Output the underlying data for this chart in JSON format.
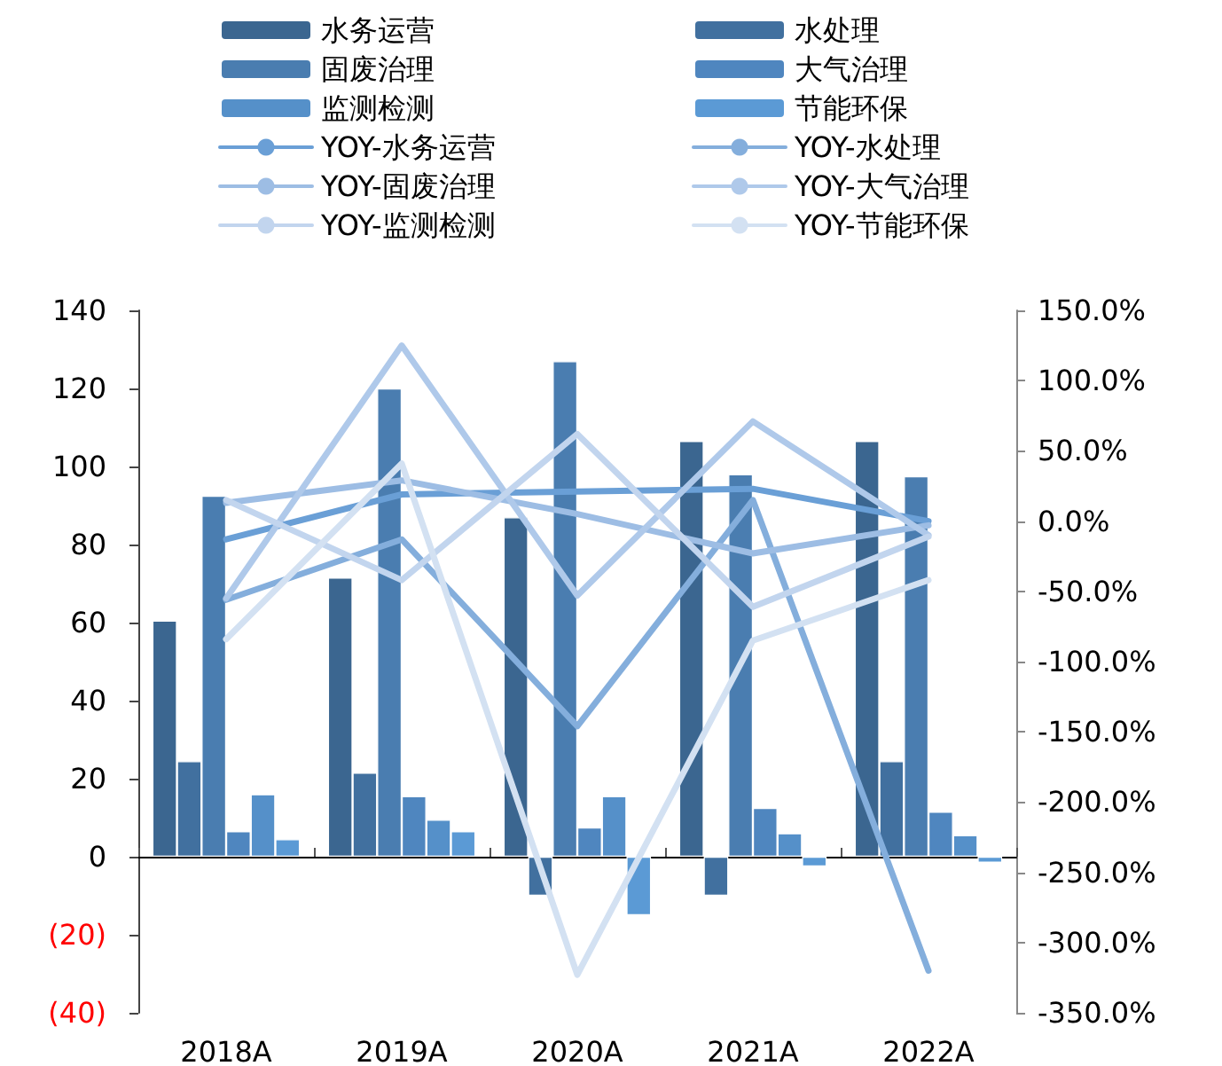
{
  "chart_data": {
    "type": "bar",
    "categories": [
      "2018A",
      "2019A",
      "2020A",
      "2021A",
      "2022A"
    ],
    "series": [
      {
        "name": "水务运营",
        "color": "#3b6690",
        "values": [
          60.5,
          71.5,
          87,
          106.5,
          106.5
        ]
      },
      {
        "name": "水处理",
        "color": "#41709f",
        "values": [
          24.5,
          21.5,
          -10,
          -10,
          24.5
        ]
      },
      {
        "name": "固废治理",
        "color": "#4a7db0",
        "values": [
          92.5,
          120,
          127,
          98,
          97.5
        ]
      },
      {
        "name": "大气治理",
        "color": "#4f86bf",
        "values": [
          6.5,
          15.5,
          7.5,
          12.5,
          11.5
        ]
      },
      {
        "name": "监测检测",
        "color": "#5590c9",
        "values": [
          16,
          9.5,
          15.5,
          6,
          5.5
        ]
      },
      {
        "name": "节能环保",
        "color": "#5b9ad5",
        "values": [
          4.5,
          6.5,
          -15,
          -2.5,
          -1.5
        ]
      },
      {
        "name": "YOY-水务运营",
        "type": "line",
        "axis": "y2",
        "color": "#6a9fd6",
        "values": [
          -13,
          19,
          21,
          23,
          0
        ]
      },
      {
        "name": "YOY-水处理",
        "type": "line",
        "axis": "y2",
        "color": "#84aedc",
        "values": [
          -56,
          -13,
          -146,
          15,
          -320
        ]
      },
      {
        "name": "YOY-固废治理",
        "type": "line",
        "axis": "y2",
        "color": "#9dbde4",
        "values": [
          13,
          29,
          5,
          -23,
          -3
        ]
      },
      {
        "name": "YOY-大气治理",
        "type": "line",
        "axis": "y2",
        "color": "#afc9ea",
        "values": [
          -55,
          125,
          -53,
          71,
          -10
        ]
      },
      {
        "name": "YOY-监测检测",
        "type": "line",
        "axis": "y2",
        "color": "#c2d5ee",
        "values": [
          15,
          -42,
          62,
          -61,
          -11
        ]
      },
      {
        "name": "YOY-节能环保",
        "type": "line",
        "axis": "y2",
        "color": "#d3e1f2",
        "values": [
          -84,
          41,
          -323,
          -85,
          -42
        ]
      }
    ],
    "ylim": [
      -40,
      140
    ],
    "yticks": [
      {
        "value": -40,
        "label": "(40)"
      },
      {
        "value": -20,
        "label": "(20)"
      },
      0,
      20,
      40,
      60,
      80,
      100,
      120,
      140
    ],
    "y2lim": [
      -350,
      150
    ],
    "y2ticks": [
      {
        "value": -350,
        "label": "-350.0%"
      },
      {
        "value": -300,
        "label": "-300.0%"
      },
      {
        "value": -250,
        "label": "-250.0%"
      },
      {
        "value": -200,
        "label": "-200.0%"
      },
      {
        "value": -150,
        "label": "-150.0%"
      },
      {
        "value": -100,
        "label": "-100.0%"
      },
      {
        "value": -50,
        "label": "-50.0%"
      },
      {
        "value": 0,
        "label": "0.0%"
      },
      {
        "value": 50,
        "label": "50.0%"
      },
      {
        "value": 100,
        "label": "100.0%"
      },
      {
        "value": 150,
        "label": "150.0%"
      }
    ],
    "legend": "top",
    "marker": "none",
    "line_style": "solid"
  }
}
